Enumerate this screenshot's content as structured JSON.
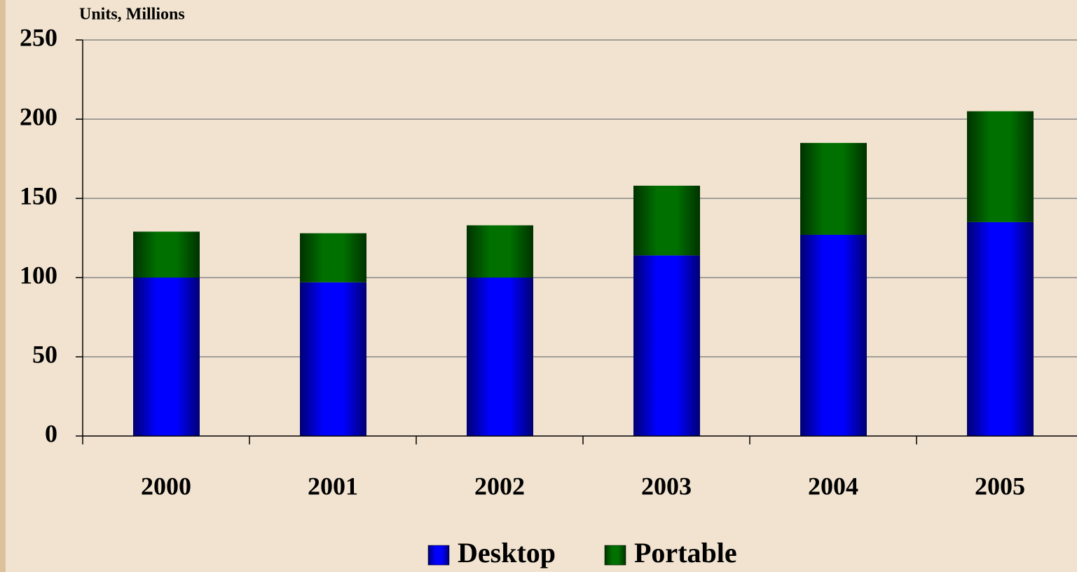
{
  "chart_data": {
    "type": "stacked_bar",
    "y_label": "Units, Millions",
    "categories": [
      "2000",
      "2001",
      "2002",
      "2003",
      "2004",
      "2005"
    ],
    "series": [
      {
        "name": "Desktop",
        "color": "#0000ff",
        "values": [
          100,
          97,
          100,
          114,
          127,
          135
        ]
      },
      {
        "name": "Portable",
        "color": "#007000",
        "values": [
          29,
          31,
          33,
          44,
          58,
          70
        ]
      }
    ],
    "ylim": [
      0,
      250
    ],
    "yticks": [
      0,
      50,
      100,
      150,
      200,
      250
    ],
    "grid": true,
    "legend": "bottom"
  }
}
